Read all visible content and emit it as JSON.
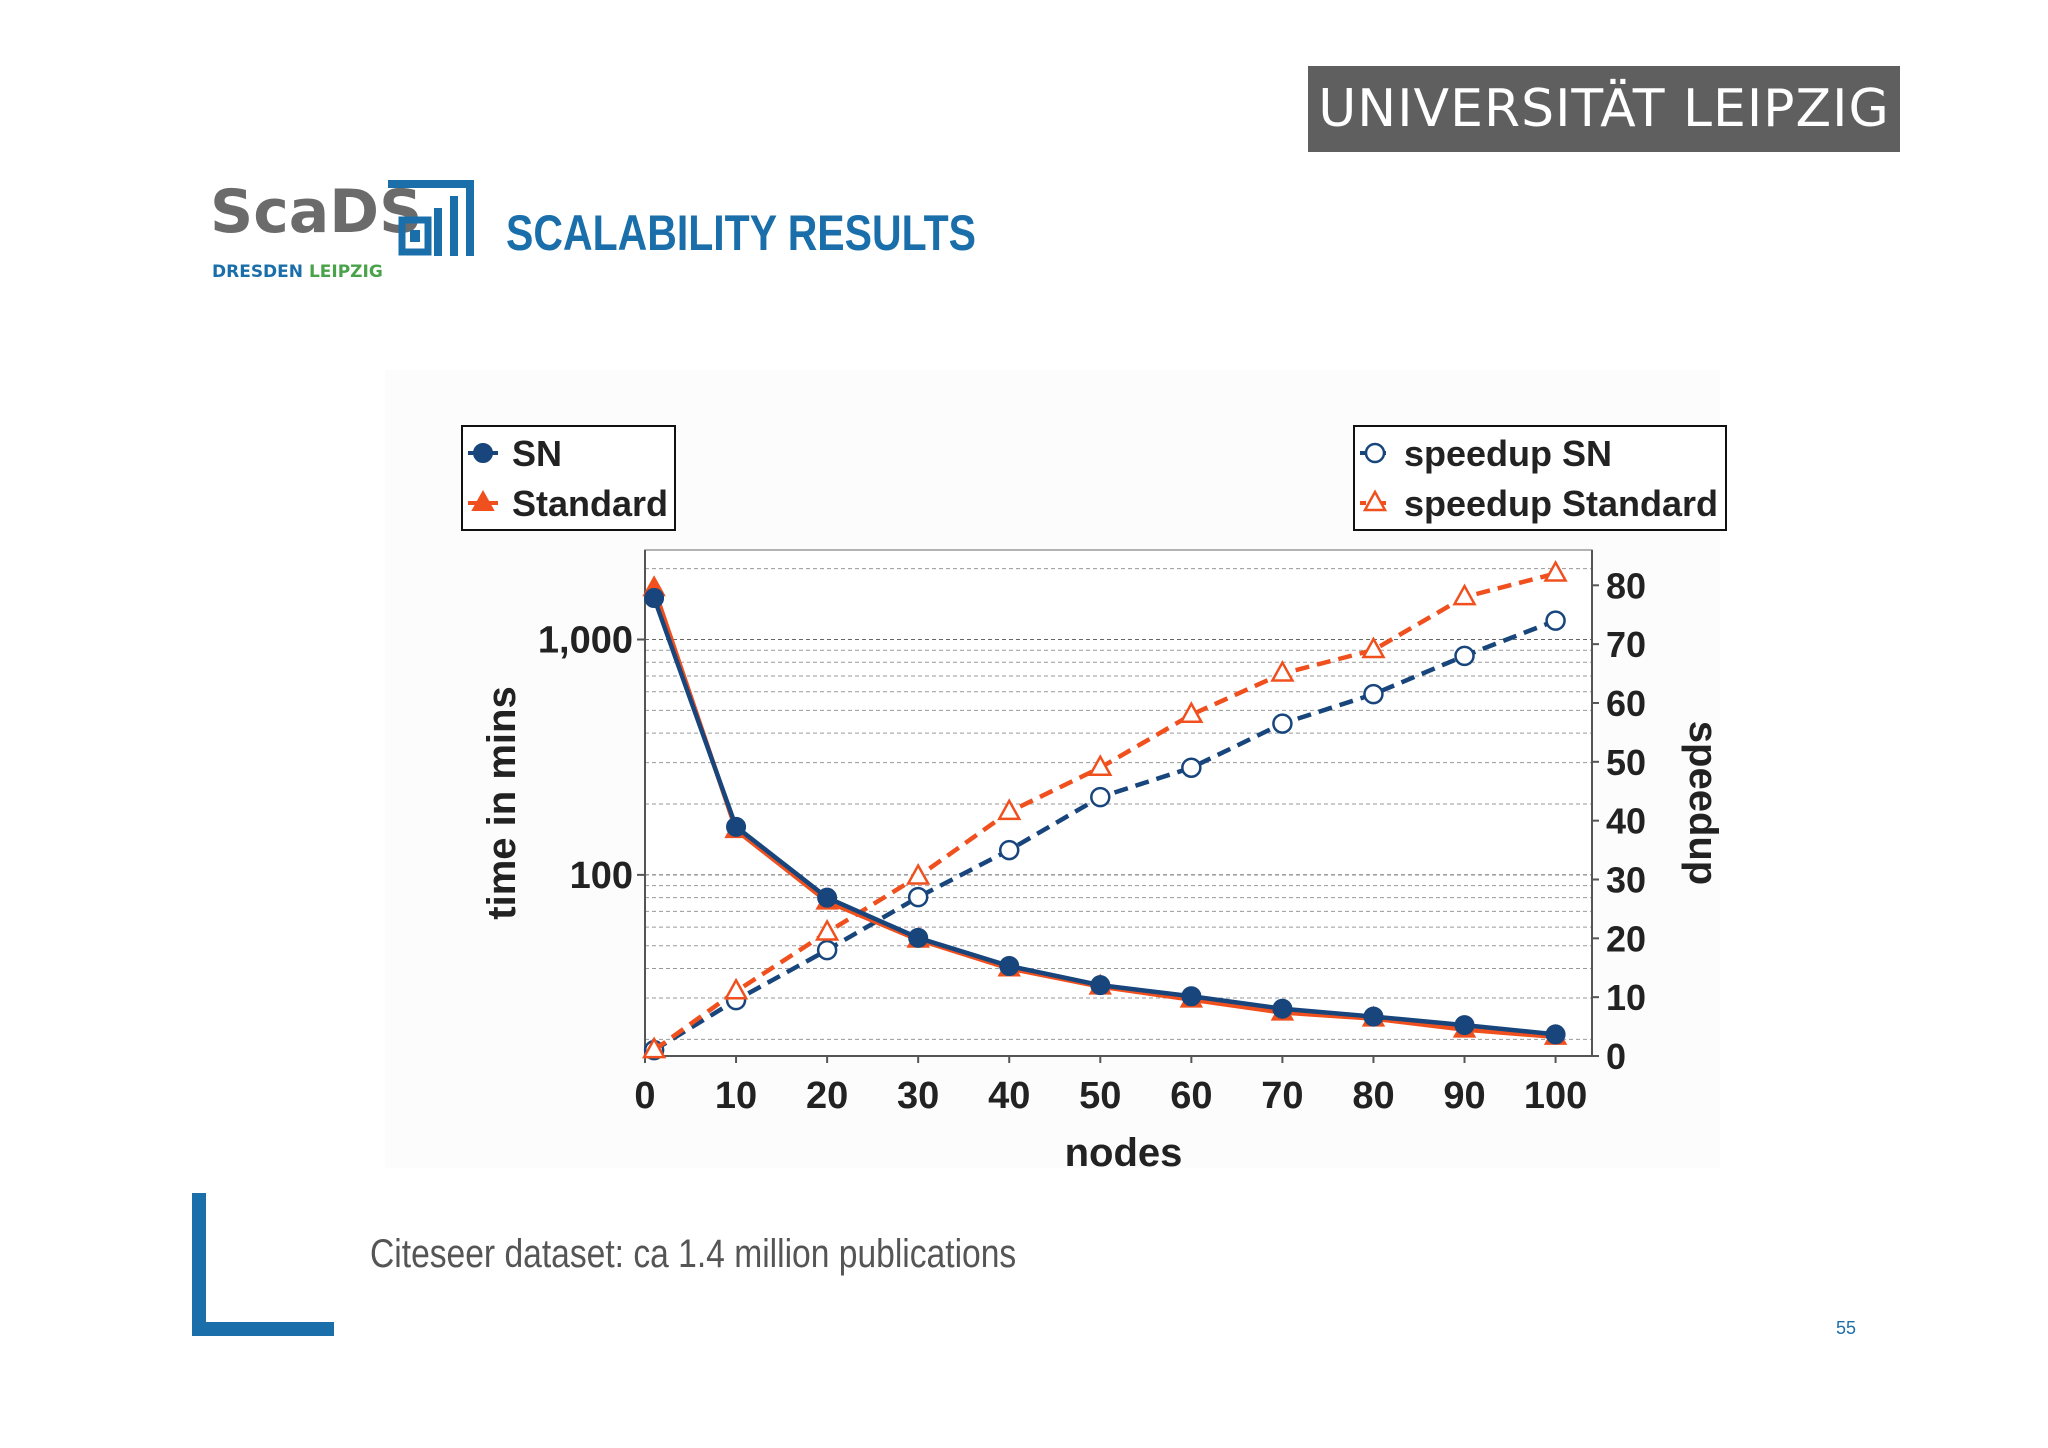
{
  "header": {
    "university": "UNIVERSITÄT LEIPZIG",
    "logo_text": "ScaDS",
    "logo_sub_dresden": "DRESDEN",
    "logo_sub_leipzig": "LEIPZIG",
    "title": "SCALABILITY RESULTS"
  },
  "footer": {
    "caption": "Citeseer dataset: ca 1.4 million publications",
    "page_number": "55"
  },
  "colors": {
    "sn": "#17457c",
    "standard": "#f0501e",
    "accent": "#1a6fab",
    "banner": "#5f5f5f"
  },
  "chart_data": {
    "type": "line",
    "xlabel": "nodes",
    "ylabel_left": "time in mins",
    "ylabel_right": "speedup",
    "x": [
      1,
      10,
      20,
      30,
      40,
      50,
      60,
      70,
      80,
      90,
      100
    ],
    "x_ticks": [
      "0",
      "10",
      "20",
      "30",
      "40",
      "50",
      "60",
      "70",
      "80",
      "90",
      "100"
    ],
    "xlim": [
      0,
      104
    ],
    "y_left_scale": "log",
    "y_left_ticks": [
      "100",
      "1,000"
    ],
    "y_left_lim": [
      17,
      2400
    ],
    "y_right_ticks": [
      "0",
      "10",
      "20",
      "30",
      "40",
      "50",
      "60",
      "70",
      "80"
    ],
    "y_right_lim": [
      0,
      86
    ],
    "grid": "horizontal dashed",
    "legend_left": [
      "SN",
      "Standard"
    ],
    "legend_right": [
      "speedup SN",
      "speedup Standard"
    ],
    "series": [
      {
        "name": "SN",
        "axis": "left",
        "marker": "circle-filled",
        "style": "solid",
        "values": [
          1500,
          160,
          80,
          54,
          41,
          34,
          30.5,
          27,
          25,
          23,
          21
        ]
      },
      {
        "name": "Standard",
        "axis": "left",
        "marker": "triangle-filled",
        "style": "solid",
        "values": [
          1650,
          155,
          77,
          53,
          40,
          33.5,
          29.5,
          26,
          24.5,
          22,
          20.5
        ]
      },
      {
        "name": "speedup SN",
        "axis": "right",
        "marker": "circle-open",
        "style": "dashed",
        "values": [
          1,
          9.5,
          18,
          27,
          35,
          44,
          49,
          56.5,
          61.5,
          68,
          74
        ]
      },
      {
        "name": "speedup Standard",
        "axis": "right",
        "marker": "triangle-open",
        "style": "dashed",
        "values": [
          1,
          11,
          21,
          30.5,
          41.5,
          49,
          58,
          65,
          69,
          78,
          82
        ]
      }
    ]
  }
}
